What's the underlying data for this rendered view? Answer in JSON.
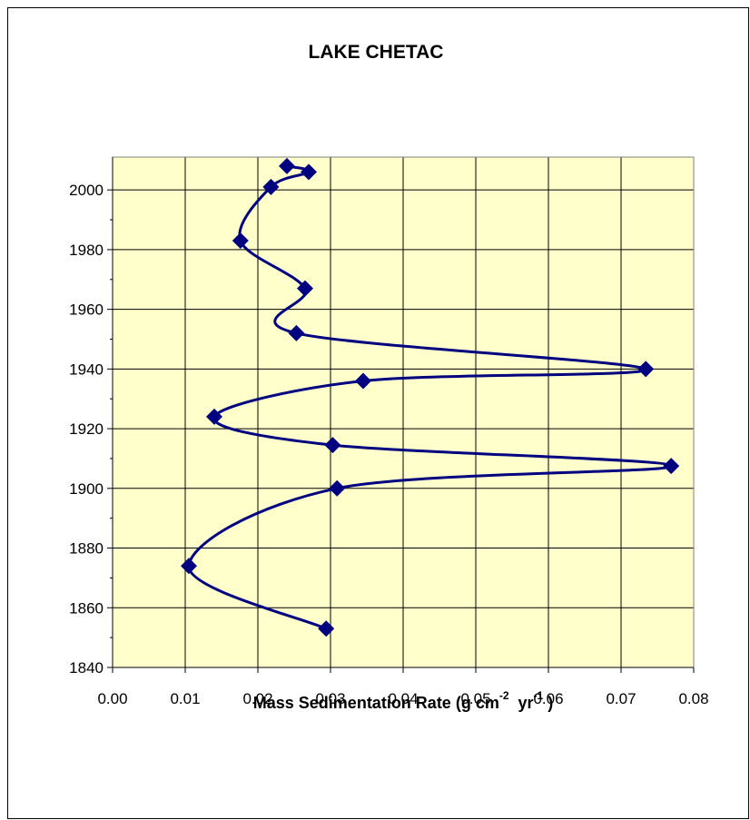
{
  "chart_data": {
    "type": "scatter",
    "title": "LAKE CHETAC",
    "xlabel_parts": [
      "Mass Sedimentation Rate (g cm",
      "-2",
      "  yr",
      "-1",
      " )"
    ],
    "series": [
      {
        "color": "#000080",
        "x": [
          0.024,
          0.027,
          0.0218,
          0.0176,
          0.0265,
          0.0253,
          0.0734,
          0.0345,
          0.014,
          0.0303,
          0.0769,
          0.0309,
          0.0105,
          0.0294
        ],
        "values": [
          2008,
          2006,
          2001,
          1983,
          1967,
          1952,
          1940,
          1936,
          1924,
          1914.5,
          1907.5,
          1900,
          1874,
          1853
        ]
      }
    ],
    "xlim": [
      0,
      0.08
    ],
    "xticks": [
      {
        "value": 0,
        "label": "0.00"
      },
      {
        "value": 0.01,
        "label": "0.01"
      },
      {
        "value": 0.02,
        "label": "0.02"
      },
      {
        "value": 0.03,
        "label": "0.03"
      },
      {
        "value": 0.04,
        "label": "0.04"
      },
      {
        "value": 0.05,
        "label": "0.05"
      },
      {
        "value": 0.06,
        "label": "0.06"
      },
      {
        "value": 0.07,
        "label": "0.07"
      },
      {
        "value": 0.08,
        "label": "0.08"
      }
    ],
    "ylim": [
      1840,
      2011
    ],
    "yticks": [
      1840,
      1860,
      1880,
      1900,
      1920,
      1940,
      1960,
      1980,
      2000
    ],
    "grid": true,
    "plot_background": "#FFFFCC"
  }
}
